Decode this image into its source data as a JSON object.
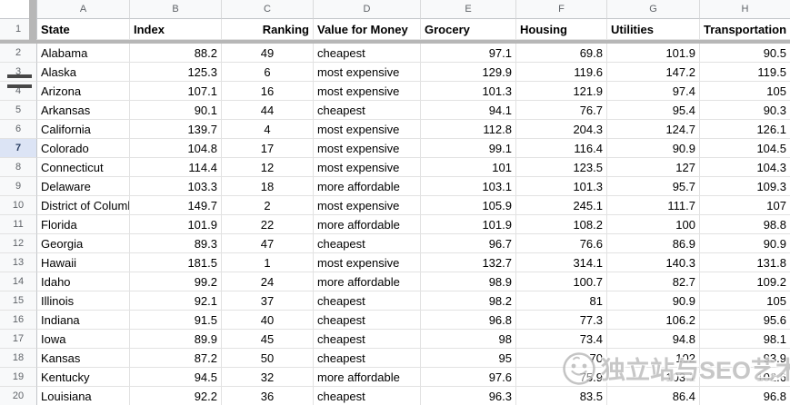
{
  "sheet": {
    "column_letters": [
      "A",
      "B",
      "C",
      "D",
      "E",
      "F",
      "G",
      "H"
    ],
    "frozen_header": {
      "row_number": "1",
      "cells": [
        "State",
        "Index",
        "Ranking",
        "Value for Money",
        "Grocery",
        "Housing",
        "Utilities",
        "Transportation"
      ]
    },
    "rows": [
      {
        "n": "2",
        "cells": [
          "Alabama",
          "88.2",
          "49",
          "cheapest",
          "97.1",
          "69.8",
          "101.9",
          "90.5"
        ]
      },
      {
        "n": "3",
        "cells": [
          "Alaska",
          "125.3",
          "6",
          "most expensive",
          "129.9",
          "119.6",
          "147.2",
          "119.5"
        ]
      },
      {
        "n": "4",
        "cells": [
          "Arizona",
          "107.1",
          "16",
          "most expensive",
          "101.3",
          "121.9",
          "97.4",
          "105"
        ]
      },
      {
        "n": "5",
        "cells": [
          "Arkansas",
          "90.1",
          "44",
          "cheapest",
          "94.1",
          "76.7",
          "95.4",
          "90.3"
        ]
      },
      {
        "n": "6",
        "cells": [
          "California",
          "139.7",
          "4",
          "most expensive",
          "112.8",
          "204.3",
          "124.7",
          "126.1"
        ]
      },
      {
        "n": "7",
        "cells": [
          "Colorado",
          "104.8",
          "17",
          "most expensive",
          "99.1",
          "116.4",
          "90.9",
          "104.5"
        ]
      },
      {
        "n": "8",
        "cells": [
          "Connecticut",
          "114.4",
          "12",
          "most expensive",
          "101",
          "123.5",
          "127",
          "104.3"
        ]
      },
      {
        "n": "9",
        "cells": [
          "Delaware",
          "103.3",
          "18",
          "more affordable",
          "103.1",
          "101.3",
          "95.7",
          "109.3"
        ]
      },
      {
        "n": "10",
        "cells": [
          "District of Columbia",
          "149.7",
          "2",
          "most expensive",
          "105.9",
          "245.1",
          "111.7",
          "107"
        ]
      },
      {
        "n": "11",
        "cells": [
          "Florida",
          "101.9",
          "22",
          "more affordable",
          "101.9",
          "108.2",
          "100",
          "98.8"
        ]
      },
      {
        "n": "12",
        "cells": [
          "Georgia",
          "89.3",
          "47",
          "cheapest",
          "96.7",
          "76.6",
          "86.9",
          "90.9"
        ]
      },
      {
        "n": "13",
        "cells": [
          "Hawaii",
          "181.5",
          "1",
          "most expensive",
          "132.7",
          "314.1",
          "140.3",
          "131.8"
        ]
      },
      {
        "n": "14",
        "cells": [
          "Idaho",
          "99.2",
          "24",
          "more affordable",
          "98.9",
          "100.7",
          "82.7",
          "109.2"
        ]
      },
      {
        "n": "15",
        "cells": [
          "Illinois",
          "92.1",
          "37",
          "cheapest",
          "98.2",
          "81",
          "90.9",
          "105"
        ]
      },
      {
        "n": "16",
        "cells": [
          "Indiana",
          "91.5",
          "40",
          "cheapest",
          "96.8",
          "77.3",
          "106.2",
          "95.6"
        ]
      },
      {
        "n": "17",
        "cells": [
          "Iowa",
          "89.9",
          "45",
          "cheapest",
          "98",
          "73.4",
          "94.8",
          "98.1"
        ]
      },
      {
        "n": "18",
        "cells": [
          "Kansas",
          "87.2",
          "50",
          "cheapest",
          "95",
          "70",
          "102",
          "93.9"
        ]
      },
      {
        "n": "19",
        "cells": [
          "Kentucky",
          "94.5",
          "32",
          "more affordable",
          "97.6",
          "75.9",
          "103.1",
          "102.6"
        ]
      },
      {
        "n": "20",
        "cells": [
          "Louisiana",
          "92.2",
          "36",
          "cheapest",
          "96.3",
          "83.5",
          "86.4",
          "96.8"
        ]
      }
    ],
    "selected_row": "7"
  },
  "watermark": {
    "text": "独立站与SEO艺术"
  },
  "colors": {
    "selected_row_header_bg": "#dce4f5",
    "freeze_divider": "#b7b7b7",
    "gridline": "#e2e2e2",
    "header_bg": "#f8f9fa"
  }
}
